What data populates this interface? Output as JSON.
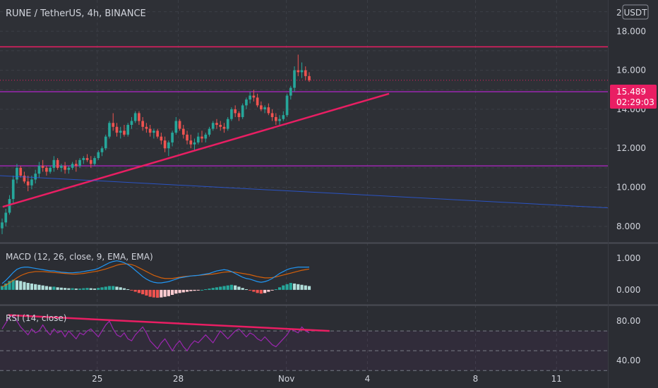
{
  "header": {
    "symbol_line": "RUNE / TetherUS, 4h, BINANCE",
    "currency": "USDT",
    "currency_prefix": "2"
  },
  "colors": {
    "up": "#26a69a",
    "down": "#ef5350",
    "accent_line": "#e91e63",
    "level_line": "#9c27b0",
    "blue_line": "#2962ff",
    "rsi_line": "#9c27b0",
    "price_badge": "#e91e63"
  },
  "price_badge": {
    "price": "15.489",
    "countdown": "02:29:03"
  },
  "chart_data": [
    {
      "type": "candlestick",
      "name": "price",
      "yticks": [
        "18.000",
        "16.000",
        "14.000",
        "12.000",
        "10.000",
        "8.000"
      ],
      "ytick_values": [
        18,
        16,
        14,
        12,
        10,
        8
      ],
      "ylim": [
        7.2,
        19.6
      ],
      "xticks": [
        "25",
        "28",
        "Nov",
        "4",
        "8",
        "11"
      ],
      "xtick_pos": [
        25,
        28,
        32,
        35,
        39,
        42
      ],
      "xlim": [
        21.4,
        43.9
      ],
      "candles": [
        [
          7.9,
          8.4,
          7.6,
          8.2
        ],
        [
          8.2,
          8.9,
          8.0,
          8.7
        ],
        [
          8.7,
          9.6,
          8.6,
          9.4
        ],
        [
          9.4,
          10.6,
          9.2,
          10.4
        ],
        [
          10.4,
          11.2,
          10.2,
          11.0
        ],
        [
          11.0,
          11.1,
          10.5,
          10.6
        ],
        [
          10.6,
          10.8,
          10.2,
          10.3
        ],
        [
          10.3,
          10.6,
          9.8,
          10.1
        ],
        [
          10.1,
          10.6,
          9.9,
          10.4
        ],
        [
          10.4,
          10.9,
          10.2,
          10.7
        ],
        [
          10.7,
          11.3,
          10.5,
          11.1
        ],
        [
          11.1,
          11.4,
          10.8,
          11.0
        ],
        [
          11.0,
          11.1,
          10.6,
          10.8
        ],
        [
          10.8,
          11.1,
          10.7,
          11.0
        ],
        [
          11.0,
          11.6,
          10.8,
          11.4
        ],
        [
          11.4,
          11.5,
          10.9,
          11.0
        ],
        [
          11.0,
          11.2,
          10.8,
          11.1
        ],
        [
          11.1,
          11.3,
          10.7,
          10.9
        ],
        [
          10.9,
          11.1,
          10.7,
          11.0
        ],
        [
          11.0,
          11.3,
          10.9,
          11.2
        ],
        [
          11.2,
          11.4,
          10.8,
          11.1
        ],
        [
          11.1,
          11.5,
          11.0,
          11.4
        ],
        [
          11.4,
          11.6,
          11.2,
          11.5
        ],
        [
          11.5,
          11.7,
          11.3,
          11.4
        ],
        [
          11.4,
          11.6,
          11.0,
          11.2
        ],
        [
          11.2,
          11.6,
          11.1,
          11.5
        ],
        [
          11.5,
          11.9,
          11.4,
          11.8
        ],
        [
          11.8,
          12.1,
          11.6,
          12.0
        ],
        [
          12.0,
          12.7,
          11.9,
          12.6
        ],
        [
          12.6,
          13.4,
          12.5,
          13.3
        ],
        [
          13.3,
          13.8,
          12.9,
          13.1
        ],
        [
          13.1,
          13.3,
          12.6,
          12.8
        ],
        [
          12.8,
          13.1,
          12.5,
          12.9
        ],
        [
          12.9,
          13.2,
          12.6,
          12.7
        ],
        [
          12.7,
          13.3,
          12.6,
          13.2
        ],
        [
          13.2,
          13.6,
          13.0,
          13.4
        ],
        [
          13.4,
          13.9,
          13.3,
          13.8
        ],
        [
          13.8,
          13.9,
          13.2,
          13.4
        ],
        [
          13.4,
          13.6,
          12.9,
          13.1
        ],
        [
          13.1,
          13.3,
          12.8,
          13.0
        ],
        [
          13.0,
          13.2,
          12.6,
          12.8
        ],
        [
          12.8,
          13.0,
          12.5,
          12.9
        ],
        [
          12.9,
          13.0,
          12.5,
          12.6
        ],
        [
          12.6,
          12.8,
          12.2,
          12.4
        ],
        [
          12.4,
          12.6,
          11.8,
          12.0
        ],
        [
          12.0,
          12.4,
          11.6,
          12.3
        ],
        [
          12.3,
          12.9,
          12.1,
          12.8
        ],
        [
          12.8,
          13.6,
          12.7,
          13.4
        ],
        [
          13.4,
          13.5,
          12.9,
          13.0
        ],
        [
          13.0,
          13.2,
          12.5,
          12.7
        ],
        [
          12.7,
          12.9,
          12.2,
          12.4
        ],
        [
          12.4,
          12.7,
          12.0,
          12.2
        ],
        [
          12.2,
          12.5,
          11.9,
          12.3
        ],
        [
          12.3,
          12.8,
          12.2,
          12.6
        ],
        [
          12.6,
          12.9,
          12.3,
          12.5
        ],
        [
          12.5,
          12.8,
          12.3,
          12.7
        ],
        [
          12.7,
          13.1,
          12.6,
          13.0
        ],
        [
          13.0,
          13.4,
          12.9,
          13.3
        ],
        [
          13.3,
          13.5,
          13.0,
          13.2
        ],
        [
          13.2,
          13.4,
          12.9,
          13.1
        ],
        [
          13.1,
          13.3,
          12.8,
          13.0
        ],
        [
          13.0,
          13.6,
          12.9,
          13.5
        ],
        [
          13.5,
          14.1,
          13.4,
          14.0
        ],
        [
          14.0,
          14.2,
          13.6,
          13.8
        ],
        [
          13.8,
          13.9,
          13.4,
          13.6
        ],
        [
          13.6,
          14.3,
          13.5,
          14.2
        ],
        [
          14.2,
          14.6,
          14.0,
          14.5
        ],
        [
          14.5,
          14.9,
          14.3,
          14.7
        ],
        [
          14.7,
          15.0,
          14.4,
          14.6
        ],
        [
          14.6,
          14.8,
          14.1,
          14.2
        ],
        [
          14.2,
          14.4,
          13.9,
          14.0
        ],
        [
          14.0,
          14.2,
          13.8,
          14.1
        ],
        [
          14.1,
          14.3,
          13.7,
          13.8
        ],
        [
          13.8,
          14.0,
          13.4,
          13.6
        ],
        [
          13.6,
          13.8,
          13.2,
          13.4
        ],
        [
          13.4,
          13.7,
          13.2,
          13.5
        ],
        [
          13.5,
          13.9,
          13.4,
          13.7
        ],
        [
          13.7,
          14.8,
          13.6,
          14.7
        ],
        [
          14.7,
          15.2,
          14.5,
          15.1
        ],
        [
          15.1,
          16.2,
          14.9,
          16.0
        ],
        [
          16.0,
          16.8,
          15.7,
          15.9
        ],
        [
          15.9,
          16.4,
          15.6,
          16.0
        ],
        [
          16.0,
          16.2,
          15.5,
          15.7
        ],
        [
          15.7,
          15.9,
          15.4,
          15.489
        ]
      ],
      "lines": [
        {
          "name": "resistance",
          "y1": 17.2,
          "y2": 17.2,
          "x_from": "left",
          "x_to": "right"
        },
        {
          "name": "support-upper",
          "y1": 14.9,
          "y2": 14.9,
          "x_from": "left",
          "x_to": "right"
        },
        {
          "name": "support-lower",
          "y1": 11.1,
          "y2": 11.1,
          "x_from": "left",
          "x_to": "right"
        }
      ],
      "trendlines": [
        {
          "name": "ascending-trendline",
          "x1": 21.5,
          "y1": 9.0,
          "x2": 35.8,
          "y2": 14.8
        },
        {
          "name": "descending-blue-line",
          "x1": 21.4,
          "y1": 10.6,
          "x2": 43.9,
          "y2": 8.95
        }
      ]
    },
    {
      "type": "histogram+lines",
      "name": "macd",
      "title": "MACD (12, 26, close, 9, EMA, EMA)",
      "yticks": [
        "1.000",
        "0.000"
      ],
      "ytick_values": [
        1.0,
        0.0
      ],
      "ylim": [
        -0.45,
        1.45
      ],
      "histogram": [
        0.12,
        0.2,
        0.28,
        0.32,
        0.3,
        0.28,
        0.25,
        0.22,
        0.2,
        0.18,
        0.16,
        0.14,
        0.12,
        0.1,
        0.1,
        0.08,
        0.07,
        0.06,
        0.05,
        0.05,
        0.04,
        0.04,
        0.05,
        0.06,
        0.05,
        0.04,
        0.06,
        0.08,
        0.1,
        0.12,
        0.12,
        0.1,
        0.08,
        0.05,
        0.02,
        -0.02,
        -0.06,
        -0.1,
        -0.14,
        -0.18,
        -0.22,
        -0.24,
        -0.25,
        -0.24,
        -0.22,
        -0.2,
        -0.16,
        -0.12,
        -0.1,
        -0.08,
        -0.06,
        -0.04,
        -0.03,
        -0.02,
        0.0,
        0.02,
        0.04,
        0.06,
        0.08,
        0.1,
        0.12,
        0.14,
        0.16,
        0.14,
        0.1,
        0.06,
        0.02,
        -0.02,
        -0.06,
        -0.1,
        -0.12,
        -0.1,
        -0.06,
        -0.02,
        0.02,
        0.08,
        0.14,
        0.18,
        0.22,
        0.2,
        0.18,
        0.16,
        0.14,
        0.12
      ],
      "macd_line": [
        0.2,
        0.3,
        0.42,
        0.55,
        0.65,
        0.7,
        0.72,
        0.72,
        0.7,
        0.68,
        0.66,
        0.64,
        0.62,
        0.6,
        0.6,
        0.58,
        0.56,
        0.55,
        0.54,
        0.54,
        0.55,
        0.56,
        0.58,
        0.6,
        0.62,
        0.64,
        0.68,
        0.74,
        0.8,
        0.86,
        0.9,
        0.92,
        0.9,
        0.86,
        0.8,
        0.72,
        0.62,
        0.52,
        0.42,
        0.34,
        0.28,
        0.24,
        0.22,
        0.22,
        0.24,
        0.26,
        0.3,
        0.34,
        0.38,
        0.4,
        0.42,
        0.44,
        0.45,
        0.46,
        0.48,
        0.5,
        0.52,
        0.56,
        0.6,
        0.62,
        0.64,
        0.62,
        0.58,
        0.52,
        0.46,
        0.4,
        0.36,
        0.34,
        0.3,
        0.26,
        0.24,
        0.26,
        0.3,
        0.36,
        0.44,
        0.52,
        0.58,
        0.64,
        0.68,
        0.7,
        0.72,
        0.72,
        0.72,
        0.72
      ],
      "signal_line": [
        0.1,
        0.15,
        0.22,
        0.3,
        0.38,
        0.45,
        0.5,
        0.54,
        0.56,
        0.58,
        0.58,
        0.58,
        0.57,
        0.56,
        0.55,
        0.54,
        0.53,
        0.52,
        0.51,
        0.5,
        0.5,
        0.51,
        0.52,
        0.54,
        0.56,
        0.58,
        0.6,
        0.63,
        0.66,
        0.7,
        0.74,
        0.78,
        0.81,
        0.82,
        0.82,
        0.8,
        0.76,
        0.7,
        0.64,
        0.58,
        0.52,
        0.46,
        0.42,
        0.38,
        0.36,
        0.36,
        0.36,
        0.38,
        0.4,
        0.42,
        0.43,
        0.44,
        0.45,
        0.46,
        0.47,
        0.48,
        0.49,
        0.5,
        0.52,
        0.54,
        0.56,
        0.57,
        0.57,
        0.56,
        0.54,
        0.52,
        0.5,
        0.48,
        0.45,
        0.42,
        0.4,
        0.38,
        0.38,
        0.39,
        0.41,
        0.44,
        0.47,
        0.5,
        0.53,
        0.56,
        0.59,
        0.62,
        0.64,
        0.66
      ]
    },
    {
      "type": "line",
      "name": "rsi",
      "title": "RSI (14, close)",
      "yticks": [
        "80.00",
        "40.00"
      ],
      "ytick_values": [
        80,
        40
      ],
      "ylim": [
        28,
        95
      ],
      "bands": [
        70,
        50,
        30
      ],
      "values": [
        72,
        78,
        84,
        86,
        80,
        74,
        70,
        66,
        72,
        68,
        70,
        76,
        70,
        66,
        72,
        68,
        70,
        64,
        70,
        66,
        62,
        68,
        66,
        70,
        72,
        68,
        64,
        70,
        76,
        80,
        72,
        66,
        64,
        68,
        62,
        60,
        66,
        70,
        74,
        68,
        60,
        56,
        52,
        58,
        62,
        56,
        50,
        56,
        60,
        54,
        50,
        56,
        60,
        58,
        62,
        66,
        62,
        58,
        64,
        70,
        66,
        62,
        66,
        70,
        72,
        68,
        64,
        68,
        66,
        62,
        60,
        64,
        60,
        56,
        54,
        58,
        62,
        66,
        72,
        70,
        68,
        74,
        70,
        68
      ],
      "trendline": {
        "x1": 21.7,
        "y1": 86,
        "x2": 33.6,
        "y2": 70
      }
    }
  ]
}
